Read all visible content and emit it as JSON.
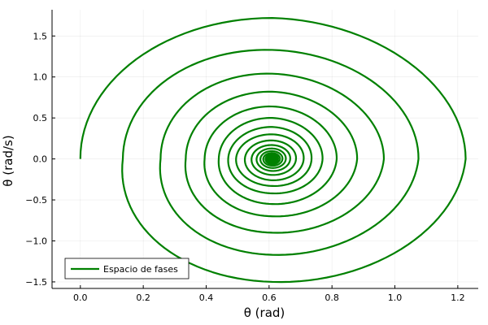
{
  "chart_data": {
    "type": "line",
    "title": "",
    "xlabel": "θ (rad)",
    "ylabel": "θ (rad/s)",
    "xlim": [
      -0.09,
      1.265
    ],
    "ylim": [
      -1.58,
      1.82
    ],
    "x_ticks": [
      0.0,
      0.2,
      0.4,
      0.6,
      0.8,
      1.0,
      1.2
    ],
    "x_tick_labels": [
      "0.0",
      "0.2",
      "0.4",
      "0.6",
      "0.8",
      "1.0",
      "1.2"
    ],
    "y_ticks": [
      -1.5,
      -1.0,
      -0.5,
      0.0,
      0.5,
      1.0,
      1.5
    ],
    "y_tick_labels": [
      "−1.5",
      "−1.0",
      "−0.5",
      "0.0",
      "0.5",
      "1.0",
      "1.5"
    ],
    "grid": true,
    "legend_position": "bottom-left",
    "series": [
      {
        "name": "Espacio de fases",
        "color": "#008000",
        "kind": "damped-spiral",
        "center": [
          0.61,
          0.0
        ],
        "start": [
          0.0,
          0.0
        ],
        "x_extremes": [
          0.0,
          1.225,
          0.135,
          1.075,
          0.255,
          0.965,
          0.335,
          0.88,
          0.395,
          0.815,
          0.44,
          0.77,
          0.47,
          0.735,
          0.495,
          0.71
        ],
        "y_extremes": [
          1.72,
          -1.5,
          1.33,
          -1.17,
          1.04,
          -0.9,
          0.82,
          -0.7,
          0.64,
          -0.55,
          0.5,
          -0.42,
          0.39,
          -0.33,
          0.3,
          -0.26
        ]
      }
    ]
  }
}
